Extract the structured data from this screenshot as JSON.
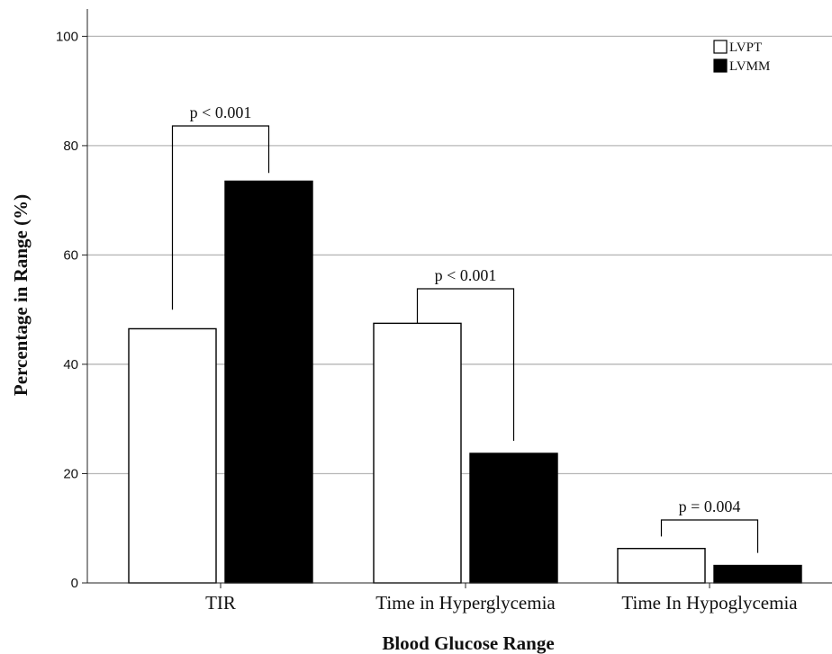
{
  "chart_data": {
    "type": "bar",
    "title": "",
    "xlabel": "Blood Glucose Range",
    "ylabel": "Percentage in Range (%)",
    "ylim": [
      0,
      105
    ],
    "yticks": [
      0,
      20,
      40,
      60,
      80,
      100
    ],
    "categories": [
      "TIR",
      "Time in Hyperglycemia",
      "Time In Hypoglycemia"
    ],
    "series": [
      {
        "name": "LVPT",
        "values": [
          46.5,
          47.5,
          6.3
        ],
        "color": "#ffffff"
      },
      {
        "name": "LVMM",
        "values": [
          73.5,
          23.7,
          3.2
        ],
        "color": "#000000"
      }
    ],
    "grid": true,
    "legend": "top-right",
    "annotations": [
      "p < 0.001",
      "p < 0.001",
      "p = 0.004"
    ]
  }
}
